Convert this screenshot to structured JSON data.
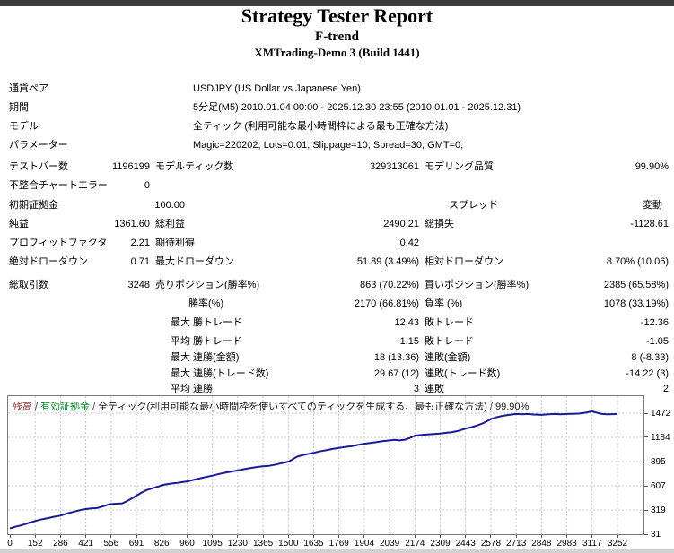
{
  "header": {
    "title": "Strategy Tester Report",
    "expert_name": "F-trend",
    "server": "XMTrading-Demo 3 (Build 1441)"
  },
  "stats_table": {
    "rows": [
      {
        "y": 93,
        "cells": [
          {
            "t": "通貨ペア",
            "x": 10,
            "a": "l",
            "k": "label"
          },
          {
            "t": "USDJPY (US Dollar vs Japanese Yen)",
            "x": 215,
            "a": "l",
            "k": "value"
          }
        ]
      },
      {
        "y": 114,
        "cells": [
          {
            "t": "期間",
            "x": 10,
            "a": "l",
            "k": "label"
          },
          {
            "t": "5分足(M5) 2010.01.04 00:00 - 2025.12.30 23:55 (2010.01.01 - 2025.12.31)",
            "x": 215,
            "a": "l",
            "k": "value"
          }
        ]
      },
      {
        "y": 135,
        "cells": [
          {
            "t": "モデル",
            "x": 10,
            "a": "l",
            "k": "label"
          },
          {
            "t": "全ティック (利用可能な最小時間枠による最も正確な方法)",
            "x": 215,
            "a": "l",
            "k": "value"
          }
        ]
      },
      {
        "y": 156,
        "cells": [
          {
            "t": "パラメーター",
            "x": 10,
            "a": "l",
            "k": "label"
          },
          {
            "t": "Magic=220202; Lots=0.01; Slippage=10; Spread=30; GMT=0;",
            "x": 215,
            "a": "l",
            "k": "value"
          }
        ]
      },
      {
        "y": 180,
        "cells": [
          {
            "t": "テストバー数",
            "x": 10,
            "a": "l",
            "k": "label"
          },
          {
            "t": "1196199",
            "x": 167,
            "a": "r",
            "k": "value"
          },
          {
            "t": "モデルティック数",
            "x": 173,
            "a": "l",
            "k": "label"
          },
          {
            "t": "329313061",
            "x": 467,
            "a": "r",
            "k": "value"
          },
          {
            "t": "モデリング品質",
            "x": 473,
            "a": "l",
            "k": "label"
          },
          {
            "t": "99.90%",
            "x": 745,
            "a": "r",
            "k": "value"
          }
        ]
      },
      {
        "y": 201,
        "cells": [
          {
            "t": "不整合チャートエラー",
            "x": 10,
            "a": "l",
            "k": "label"
          },
          {
            "t": "0",
            "x": 167,
            "a": "r",
            "k": "value"
          }
        ]
      },
      {
        "y": 223,
        "cells": [
          {
            "t": "初期証拠金",
            "x": 10,
            "a": "l",
            "k": "label"
          },
          {
            "t": "100.00",
            "x": 206,
            "a": "r",
            "k": "value"
          },
          {
            "t": "スプレッド",
            "x": 500,
            "a": "l",
            "k": "label"
          },
          {
            "t": "変動",
            "x": 738,
            "a": "r",
            "k": "value"
          }
        ]
      },
      {
        "y": 244,
        "cells": [
          {
            "t": "純益",
            "x": 10,
            "a": "l",
            "k": "label"
          },
          {
            "t": "1361.60",
            "x": 167,
            "a": "r",
            "k": "value"
          },
          {
            "t": "総利益",
            "x": 173,
            "a": "l",
            "k": "label"
          },
          {
            "t": "2490.21",
            "x": 467,
            "a": "r",
            "k": "value"
          },
          {
            "t": "総損失",
            "x": 473,
            "a": "l",
            "k": "label"
          },
          {
            "t": "-1128.61",
            "x": 745,
            "a": "r",
            "k": "value"
          }
        ]
      },
      {
        "y": 265,
        "cells": [
          {
            "t": "プロフィットファクタ",
            "x": 10,
            "a": "l",
            "k": "label"
          },
          {
            "t": "2.21",
            "x": 167,
            "a": "r",
            "k": "value"
          },
          {
            "t": "期待利得",
            "x": 173,
            "a": "l",
            "k": "label"
          },
          {
            "t": "0.42",
            "x": 467,
            "a": "r",
            "k": "value"
          }
        ]
      },
      {
        "y": 286,
        "cells": [
          {
            "t": "絶対ドローダウン",
            "x": 10,
            "a": "l",
            "k": "label"
          },
          {
            "t": "0.71",
            "x": 167,
            "a": "r",
            "k": "value"
          },
          {
            "t": "最大ドローダウン",
            "x": 173,
            "a": "l",
            "k": "label"
          },
          {
            "t": "51.89 (3.49%)",
            "x": 467,
            "a": "r",
            "k": "value"
          },
          {
            "t": "相対ドローダウン",
            "x": 473,
            "a": "l",
            "k": "label"
          },
          {
            "t": "8.70% (10.06)",
            "x": 745,
            "a": "r",
            "k": "value"
          }
        ]
      },
      {
        "y": 312,
        "cells": [
          {
            "t": "総取引数",
            "x": 10,
            "a": "l",
            "k": "label"
          },
          {
            "t": "3248",
            "x": 167,
            "a": "r",
            "k": "value"
          },
          {
            "t": "売りポジション(勝率%)",
            "x": 173,
            "a": "l",
            "k": "label"
          },
          {
            "t": "863 (70.22%)",
            "x": 467,
            "a": "r",
            "k": "value"
          },
          {
            "t": "買いポジション(勝率%)",
            "x": 473,
            "a": "l",
            "k": "label"
          },
          {
            "t": "2385 (65.58%)",
            "x": 745,
            "a": "r",
            "k": "value"
          }
        ]
      },
      {
        "y": 333,
        "cells": [
          {
            "t": "勝率(%)",
            "x": 210,
            "a": "l",
            "k": "label"
          },
          {
            "t": "2170 (66.81%)",
            "x": 467,
            "a": "r",
            "k": "value"
          },
          {
            "t": "負率 (%)",
            "x": 473,
            "a": "l",
            "k": "label"
          },
          {
            "t": "1078 (33.19%)",
            "x": 745,
            "a": "r",
            "k": "value"
          }
        ]
      },
      {
        "y": 354,
        "cells": [
          {
            "t": "最大 勝トレード",
            "x": 190,
            "a": "l",
            "k": "label"
          },
          {
            "t": "12.43",
            "x": 467,
            "a": "r",
            "k": "value"
          },
          {
            "t": "敗トレード",
            "x": 473,
            "a": "l",
            "k": "label"
          },
          {
            "t": "-12.36",
            "x": 745,
            "a": "r",
            "k": "value"
          }
        ]
      },
      {
        "y": 375,
        "cells": [
          {
            "t": "平均 勝トレード",
            "x": 190,
            "a": "l",
            "k": "label"
          },
          {
            "t": "1.15",
            "x": 467,
            "a": "r",
            "k": "value"
          },
          {
            "t": "敗トレード",
            "x": 473,
            "a": "l",
            "k": "label"
          },
          {
            "t": "-1.05",
            "x": 745,
            "a": "r",
            "k": "value"
          }
        ]
      },
      {
        "y": 393,
        "cells": [
          {
            "t": "最大 連勝(金額)",
            "x": 190,
            "a": "l",
            "k": "label"
          },
          {
            "t": "18 (13.36)",
            "x": 467,
            "a": "r",
            "k": "value"
          },
          {
            "t": "連敗(金額)",
            "x": 473,
            "a": "l",
            "k": "label"
          },
          {
            "t": "8 (-8.33)",
            "x": 745,
            "a": "r",
            "k": "value"
          }
        ]
      },
      {
        "y": 411,
        "cells": [
          {
            "t": "最大 連勝(トレード数)",
            "x": 190,
            "a": "l",
            "k": "label"
          },
          {
            "t": "29.67 (12)",
            "x": 467,
            "a": "r",
            "k": "value"
          },
          {
            "t": "連敗(トレード数)",
            "x": 473,
            "a": "l",
            "k": "label"
          },
          {
            "t": "-14.22 (3)",
            "x": 745,
            "a": "r",
            "k": "value"
          }
        ]
      },
      {
        "y": 428,
        "cells": [
          {
            "t": "平均 連勝",
            "x": 190,
            "a": "l",
            "k": "label"
          },
          {
            "t": "3",
            "x": 467,
            "a": "r",
            "k": "value"
          },
          {
            "t": "連敗",
            "x": 473,
            "a": "l",
            "k": "label"
          },
          {
            "t": "2",
            "x": 745,
            "a": "r",
            "k": "value"
          }
        ]
      }
    ]
  },
  "chart_data": {
    "type": "line",
    "title": "",
    "xlabel": "",
    "ylabel": "",
    "legend_position": "top-left",
    "grid": true,
    "legend": {
      "balance_label": "残高",
      "equity_label": "有効証拠金",
      "separator": "/",
      "model_label": "全ティック(利用可能な最小時間枠を使いすべてのティックを生成する、最も正確な方法)",
      "quality_label": "99.90%"
    },
    "x_ticks": [
      0,
      152,
      286,
      421,
      556,
      691,
      826,
      960,
      1095,
      1230,
      1365,
      1500,
      1635,
      1769,
      1904,
      2039,
      2174,
      2309,
      2443,
      2578,
      2713,
      2848,
      2983,
      3117,
      3252
    ],
    "y_ticks": [
      31,
      319,
      607,
      895,
      1184,
      1472
    ],
    "xlim": [
      0,
      3252
    ],
    "ylim": [
      31,
      1472
    ],
    "colors": {
      "balance_line": "#1a1a99",
      "grid_line": "#c8c8c8",
      "frame": "#7a7a7a"
    },
    "series": [
      {
        "name": "残高",
        "color": "#1a1a99",
        "points": [
          [
            0,
            100
          ],
          [
            30,
            118
          ],
          [
            60,
            132
          ],
          [
            90,
            150
          ],
          [
            120,
            170
          ],
          [
            152,
            188
          ],
          [
            180,
            205
          ],
          [
            220,
            222
          ],
          [
            250,
            238
          ],
          [
            286,
            252
          ],
          [
            320,
            278
          ],
          [
            360,
            300
          ],
          [
            400,
            322
          ],
          [
            421,
            330
          ],
          [
            450,
            338
          ],
          [
            480,
            342
          ],
          [
            510,
            360
          ],
          [
            540,
            382
          ],
          [
            556,
            390
          ],
          [
            585,
            394
          ],
          [
            615,
            398
          ],
          [
            645,
            430
          ],
          [
            670,
            462
          ],
          [
            691,
            490
          ],
          [
            715,
            522
          ],
          [
            745,
            556
          ],
          [
            780,
            580
          ],
          [
            810,
            600
          ],
          [
            826,
            614
          ],
          [
            850,
            625
          ],
          [
            880,
            635
          ],
          [
            910,
            642
          ],
          [
            940,
            652
          ],
          [
            960,
            660
          ],
          [
            990,
            676
          ],
          [
            1020,
            692
          ],
          [
            1060,
            712
          ],
          [
            1095,
            728
          ],
          [
            1130,
            748
          ],
          [
            1170,
            766
          ],
          [
            1200,
            778
          ],
          [
            1230,
            790
          ],
          [
            1265,
            806
          ],
          [
            1300,
            820
          ],
          [
            1335,
            832
          ],
          [
            1365,
            840
          ],
          [
            1395,
            844
          ],
          [
            1425,
            856
          ],
          [
            1455,
            872
          ],
          [
            1480,
            884
          ],
          [
            1500,
            896
          ],
          [
            1520,
            918
          ],
          [
            1545,
            952
          ],
          [
            1565,
            966
          ],
          [
            1600,
            984
          ],
          [
            1635,
            1000
          ],
          [
            1665,
            1016
          ],
          [
            1700,
            1030
          ],
          [
            1735,
            1046
          ],
          [
            1769,
            1058
          ],
          [
            1800,
            1068
          ],
          [
            1835,
            1078
          ],
          [
            1870,
            1094
          ],
          [
            1904,
            1108
          ],
          [
            1935,
            1118
          ],
          [
            1970,
            1128
          ],
          [
            2000,
            1138
          ],
          [
            2039,
            1148
          ],
          [
            2065,
            1154
          ],
          [
            2090,
            1148
          ],
          [
            2120,
            1156
          ],
          [
            2150,
            1180
          ],
          [
            2174,
            1204
          ],
          [
            2205,
            1212
          ],
          [
            2240,
            1218
          ],
          [
            2275,
            1224
          ],
          [
            2309,
            1230
          ],
          [
            2340,
            1238
          ],
          [
            2370,
            1246
          ],
          [
            2405,
            1262
          ],
          [
            2443,
            1288
          ],
          [
            2475,
            1306
          ],
          [
            2505,
            1326
          ],
          [
            2540,
            1356
          ],
          [
            2578,
            1402
          ],
          [
            2605,
            1422
          ],
          [
            2640,
            1440
          ],
          [
            2675,
            1452
          ],
          [
            2713,
            1462
          ],
          [
            2745,
            1458
          ],
          [
            2775,
            1462
          ],
          [
            2805,
            1456
          ],
          [
            2848,
            1452
          ],
          [
            2885,
            1458
          ],
          [
            2920,
            1462
          ],
          [
            2950,
            1458
          ],
          [
            2983,
            1462
          ],
          [
            3015,
            1464
          ],
          [
            3050,
            1468
          ],
          [
            3085,
            1478
          ],
          [
            3117,
            1494
          ],
          [
            3140,
            1478
          ],
          [
            3165,
            1464
          ],
          [
            3195,
            1458
          ],
          [
            3225,
            1460
          ],
          [
            3252,
            1462
          ]
        ]
      }
    ]
  }
}
